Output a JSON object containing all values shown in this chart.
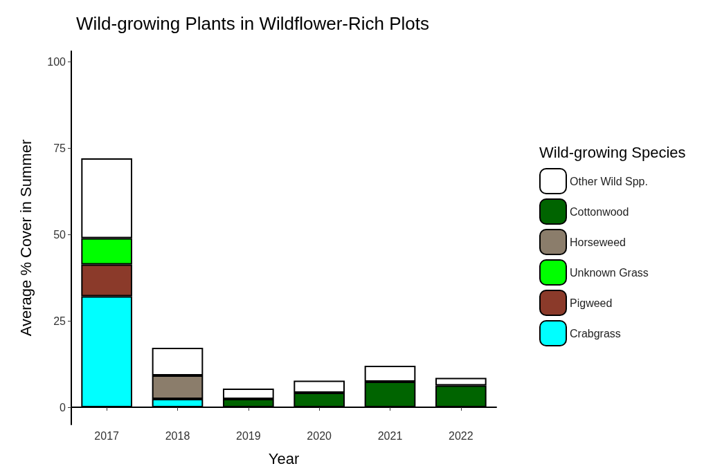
{
  "chart_data": {
    "type": "bar",
    "stacked": true,
    "title": "Wild-growing Plants in Wildflower-Rich Plots",
    "xlabel": "Year",
    "ylabel": "Average % Cover in Summer",
    "legend_title": "Wild-growing Species",
    "legend": "right",
    "grid": false,
    "categories": [
      "2017",
      "2018",
      "2019",
      "2020",
      "2021",
      "2022"
    ],
    "ylim": [
      -5,
      103
    ],
    "yticks": [
      0,
      25,
      50,
      75,
      100
    ],
    "series": [
      {
        "name": "Crabgrass",
        "color": "#00ffff",
        "values": [
          32.1,
          2.4,
          null,
          null,
          null,
          null
        ]
      },
      {
        "name": "Pigweed",
        "color": "#8b3a2a",
        "values": [
          9.2,
          null,
          null,
          null,
          null,
          null
        ]
      },
      {
        "name": "Unknown Grass",
        "color": "#00ff00",
        "values": [
          7.6,
          null,
          null,
          null,
          null,
          null
        ]
      },
      {
        "name": "Horseweed",
        "color": "#8b7d6b",
        "values": [
          null,
          6.8,
          null,
          null,
          null,
          null
        ]
      },
      {
        "name": "Cottonwood",
        "color": "#006400",
        "values": [
          null,
          null,
          2.4,
          4.2,
          7.4,
          6.3
        ]
      },
      {
        "name": "Other Wild Spp.",
        "color": "#ffffff",
        "values": [
          23.1,
          8.0,
          3.0,
          3.5,
          4.6,
          2.2
        ]
      }
    ]
  }
}
